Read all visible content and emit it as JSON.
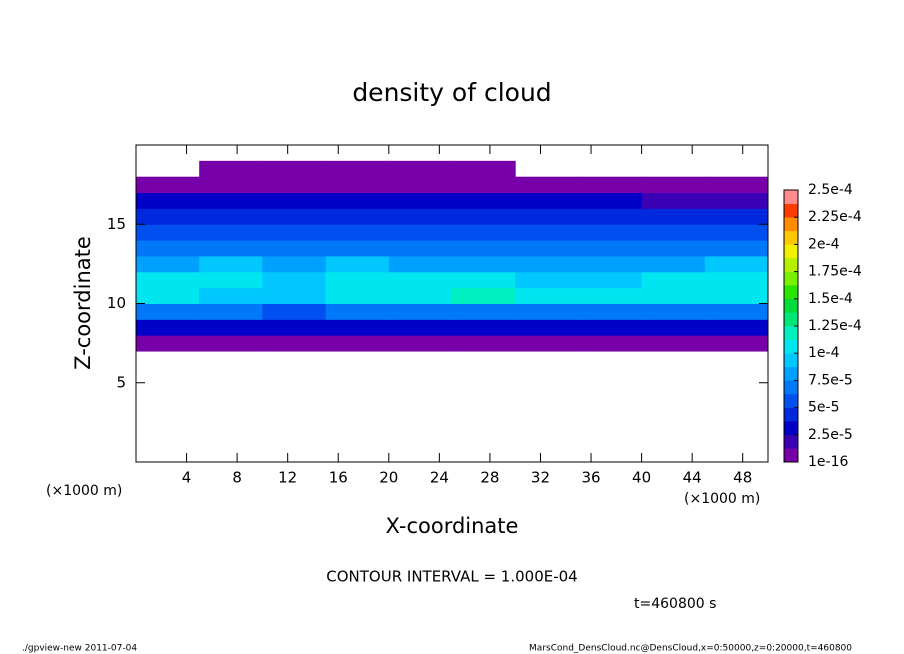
{
  "chart_data": {
    "type": "heatmap",
    "title": "density of cloud",
    "x_label": "X-coordinate",
    "y_label": "Z-coordinate",
    "x_unit_label": "(×1000 m)",
    "contour_note": "CONTOUR INTERVAL = 1.000E-04",
    "time_label": "t=460800 s",
    "footer_left": "./gpview-new  2011-07-04",
    "footer_right": "MarsCond_DensCloud.nc@DensCloud,x=0:50000,z=0:20000,t=460800",
    "xlim": [
      0,
      50
    ],
    "ylim": [
      0,
      20
    ],
    "xticks": [
      4,
      8,
      12,
      16,
      20,
      24,
      28,
      32,
      36,
      40,
      44,
      48
    ],
    "yticks": [
      5,
      10,
      15
    ],
    "x_edges": [
      0,
      5,
      10,
      15,
      20,
      25,
      30,
      35,
      40,
      45,
      50
    ],
    "z_edges": [
      7,
      8,
      9,
      10,
      11,
      12,
      13,
      14,
      15,
      16,
      17,
      18,
      19
    ],
    "values": [
      [
        1.2e-05,
        1.2e-05,
        1.2e-05,
        1.2e-05,
        1.2e-05,
        1.2e-05,
        1.2e-05,
        1.2e-05,
        1.2e-05,
        1.2e-05
      ],
      [
        3e-05,
        3e-05,
        3e-05,
        3e-05,
        3e-05,
        3e-05,
        3e-05,
        3e-05,
        3e-05,
        3e-05
      ],
      [
        6.5e-05,
        6.5e-05,
        6e-05,
        6.5e-05,
        6.5e-05,
        7e-05,
        6.5e-05,
        6.5e-05,
        6.5e-05,
        7e-05
      ],
      [
        0.0001,
        9.5e-05,
        9e-05,
        0.0001,
        0.000105,
        0.000115,
        0.00011,
        0.0001,
        0.000105,
        0.00011
      ],
      [
        0.000105,
        0.000105,
        9.5e-05,
        0.000105,
        0.0001,
        0.000105,
        9.5e-05,
        9e-05,
        0.0001,
        0.00011
      ],
      [
        8.5e-05,
        9e-05,
        8.5e-05,
        9e-05,
        8.5e-05,
        8e-05,
        8e-05,
        7.5e-05,
        8.5e-05,
        9e-05
      ],
      [
        7e-05,
        7e-05,
        7e-05,
        7e-05,
        7e-05,
        6.5e-05,
        6.5e-05,
        6.5e-05,
        7e-05,
        7e-05
      ],
      [
        6e-05,
        6e-05,
        6e-05,
        6e-05,
        6e-05,
        6e-05,
        6e-05,
        6e-05,
        5.5e-05,
        5.5e-05
      ],
      [
        4.5e-05,
        4.5e-05,
        4.5e-05,
        4.5e-05,
        4.5e-05,
        4.5e-05,
        4.5e-05,
        4.5e-05,
        4e-05,
        4e-05
      ],
      [
        2.8e-05,
        2.8e-05,
        2.8e-05,
        2.8e-05,
        2.8e-05,
        2.8e-05,
        2.8e-05,
        2.5e-05,
        1.8e-05,
        1.8e-05
      ],
      [
        1e-05,
        1e-05,
        1e-05,
        1e-05,
        1e-05,
        1e-05,
        1e-05,
        1e-05,
        8e-06,
        8e-06
      ],
      [
        null,
        6e-06,
        6e-06,
        6e-06,
        6e-06,
        6e-06,
        null,
        null,
        null,
        null
      ]
    ],
    "levels": [
      1e-16,
      1.25e-05,
      2.5e-05,
      3.75e-05,
      5e-05,
      6.25e-05,
      7.5e-05,
      8.75e-05,
      0.0001,
      0.0001125,
      0.000125,
      0.0001375,
      0.00015,
      0.0001625,
      0.000175,
      0.0001875,
      0.0002,
      0.0002125,
      0.000225,
      0.0002375,
      0.00025
    ],
    "colors": [
      "#7800a8",
      "#3c00b4",
      "#0000c8",
      "#0028dc",
      "#0050f0",
      "#0078f8",
      "#00a0ff",
      "#00c8ff",
      "#00e6f0",
      "#00f0c0",
      "#00e678",
      "#00dc3c",
      "#28e600",
      "#78f000",
      "#b4f000",
      "#f0f000",
      "#ffc800",
      "#ff8c00",
      "#ff3c00",
      "#ff8c8c"
    ],
    "colorbar_ticks": [
      {
        "value": 1e-16,
        "label": "1e-16"
      },
      {
        "value": 2.5e-05,
        "label": "2.5e-5"
      },
      {
        "value": 5e-05,
        "label": "5e-5"
      },
      {
        "value": 7.5e-05,
        "label": "7.5e-5"
      },
      {
        "value": 0.0001,
        "label": "1e-4"
      },
      {
        "value": 0.000125,
        "label": "1.25e-4"
      },
      {
        "value": 0.00015,
        "label": "1.5e-4"
      },
      {
        "value": 0.000175,
        "label": "1.75e-4"
      },
      {
        "value": 0.0002,
        "label": "2e-4"
      },
      {
        "value": 0.000225,
        "label": "2.25e-4"
      },
      {
        "value": 0.00025,
        "label": "2.5e-4"
      }
    ]
  }
}
